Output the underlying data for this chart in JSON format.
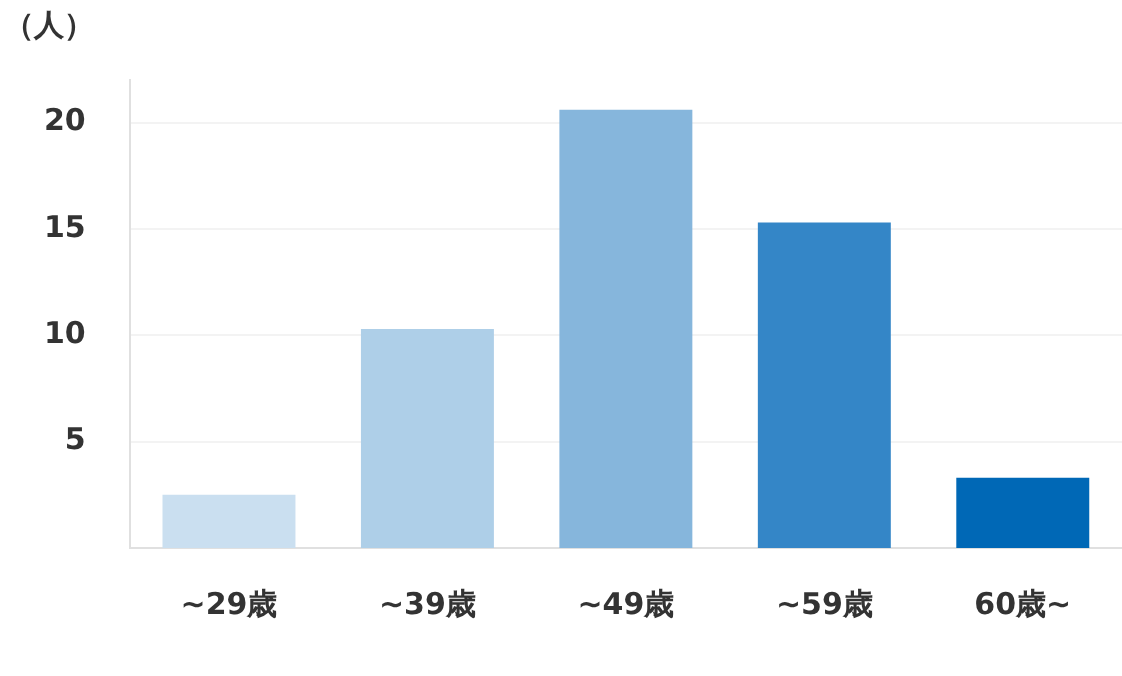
{
  "chart_data": {
    "type": "bar",
    "ylabel": "（人）",
    "categories": [
      "~29歳",
      "~39歳",
      "~49歳",
      "~59歳",
      "60歳~"
    ],
    "values": [
      2.5,
      10.3,
      20.6,
      15.3,
      3.3
    ],
    "colors": [
      "#cadff0",
      "#aecfe8",
      "#86b6dc",
      "#3486c7",
      "#0068b6"
    ],
    "ylim": [
      0,
      22
    ],
    "yticks": [
      5,
      10,
      15,
      20
    ],
    "grid": "y",
    "legend": false
  }
}
